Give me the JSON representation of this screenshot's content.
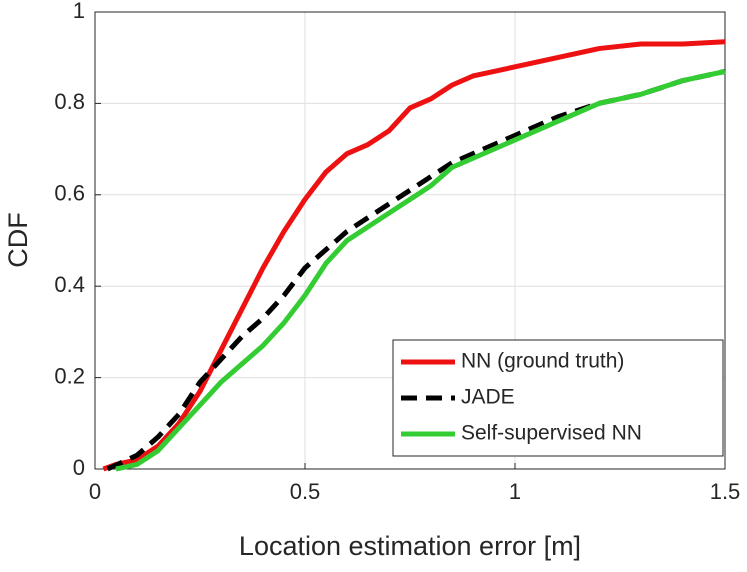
{
  "chart_data": {
    "type": "line",
    "xlabel": "Location estimation error [m]",
    "ylabel": "CDF",
    "xlim": [
      0,
      1.5
    ],
    "ylim": [
      0,
      1
    ],
    "xticks": [
      0,
      0.5,
      1,
      1.5
    ],
    "yticks": [
      0,
      0.2,
      0.4,
      0.6,
      0.8,
      1
    ],
    "grid": true,
    "legend": "lower right",
    "series": [
      {
        "name": "NN (ground truth)",
        "color": "#ee1111",
        "dash": false,
        "x": [
          0.02,
          0.05,
          0.1,
          0.15,
          0.2,
          0.25,
          0.3,
          0.35,
          0.4,
          0.45,
          0.5,
          0.55,
          0.6,
          0.65,
          0.7,
          0.75,
          0.8,
          0.85,
          0.9,
          0.95,
          1.0,
          1.1,
          1.2,
          1.3,
          1.4,
          1.5
        ],
        "values": [
          0,
          0.01,
          0.02,
          0.05,
          0.1,
          0.17,
          0.26,
          0.35,
          0.44,
          0.52,
          0.59,
          0.65,
          0.69,
          0.71,
          0.74,
          0.79,
          0.81,
          0.84,
          0.86,
          0.87,
          0.88,
          0.9,
          0.92,
          0.93,
          0.93,
          0.935
        ]
      },
      {
        "name": "JADE",
        "color": "#000000",
        "dash": true,
        "x": [
          0.03,
          0.1,
          0.15,
          0.2,
          0.25,
          0.3,
          0.35,
          0.4,
          0.45,
          0.5,
          0.55,
          0.6,
          0.65,
          0.7,
          0.75,
          0.8,
          0.85,
          0.9,
          1.0,
          1.1,
          1.2,
          1.3,
          1.4,
          1.5
        ],
        "values": [
          0,
          0.03,
          0.07,
          0.12,
          0.19,
          0.24,
          0.29,
          0.33,
          0.38,
          0.44,
          0.48,
          0.52,
          0.55,
          0.58,
          0.61,
          0.64,
          0.67,
          0.69,
          0.73,
          0.77,
          0.8,
          0.82,
          0.85,
          0.87
        ]
      },
      {
        "name": "Self-supervised NN",
        "color": "#33cc33",
        "dash": false,
        "x": [
          0.05,
          0.1,
          0.15,
          0.2,
          0.25,
          0.3,
          0.35,
          0.4,
          0.45,
          0.5,
          0.55,
          0.6,
          0.65,
          0.7,
          0.75,
          0.8,
          0.85,
          0.9,
          1.0,
          1.1,
          1.2,
          1.3,
          1.4,
          1.5
        ],
        "values": [
          0,
          0.01,
          0.04,
          0.09,
          0.14,
          0.19,
          0.23,
          0.27,
          0.32,
          0.38,
          0.45,
          0.5,
          0.53,
          0.56,
          0.59,
          0.62,
          0.66,
          0.68,
          0.72,
          0.76,
          0.8,
          0.82,
          0.85,
          0.87
        ]
      }
    ]
  }
}
